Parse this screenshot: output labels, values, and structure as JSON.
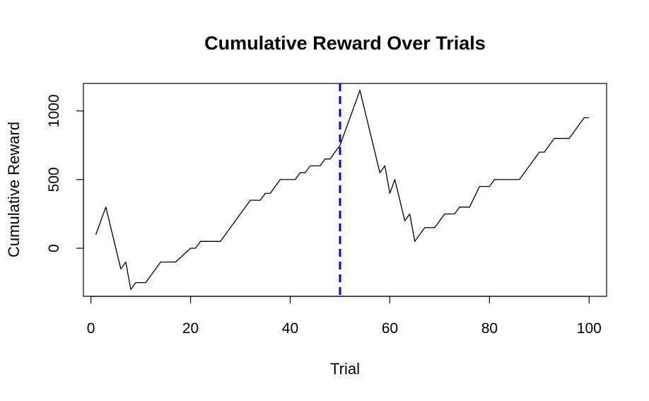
{
  "chart_data": {
    "type": "line",
    "title": "Cumulative Reward Over Trials",
    "xlabel": "Trial",
    "ylabel": "Cumulative Reward",
    "xlim": [
      -1.5,
      103.5
    ],
    "ylim": [
      -350,
      1200
    ],
    "x_ticks": [
      0,
      20,
      40,
      60,
      80,
      100
    ],
    "y_ticks": [
      0,
      500,
      1000
    ],
    "grid": false,
    "line_color": "#000000",
    "vline": {
      "x": 50,
      "color": "#0000ff",
      "style": "dashed"
    },
    "series": [
      {
        "x": [
          1,
          3,
          6,
          7,
          8,
          9,
          10,
          11,
          14,
          15,
          17,
          20,
          21,
          22,
          23,
          26,
          32,
          33,
          34,
          35,
          36,
          38,
          41,
          42,
          43,
          44,
          46,
          47,
          48,
          49,
          50,
          54,
          58,
          59,
          60,
          61,
          63,
          64,
          65,
          67,
          69,
          71,
          73,
          74,
          76,
          78,
          80,
          81,
          82,
          86,
          90,
          91,
          93,
          96,
          98,
          99,
          100
        ],
        "y": [
          100,
          300,
          -150,
          -100,
          -300,
          -250,
          -250,
          -250,
          -100,
          -100,
          -100,
          0,
          0,
          50,
          50,
          50,
          350,
          350,
          350,
          400,
          400,
          500,
          500,
          550,
          550,
          600,
          600,
          650,
          650,
          700,
          750,
          1150,
          550,
          600,
          400,
          500,
          200,
          250,
          50,
          150,
          150,
          250,
          250,
          300,
          300,
          450,
          450,
          500,
          500,
          500,
          700,
          700,
          800,
          800,
          900,
          950,
          950
        ]
      }
    ]
  }
}
